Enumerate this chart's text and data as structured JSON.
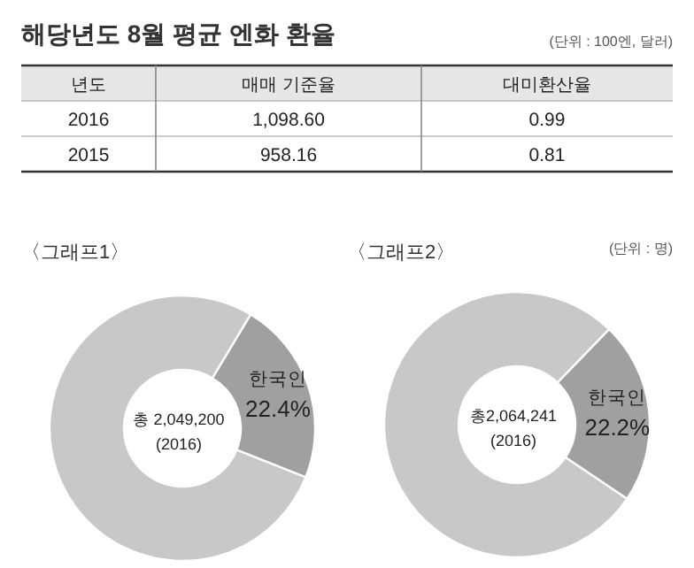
{
  "chart_data": [
    {
      "type": "other",
      "title": "해당년도 8월 평균 엔화 환율",
      "subtitle": "(단위 : 100엔, 달러)",
      "categories": [
        "년도",
        "매매 기준율",
        "대미환산율"
      ],
      "annotations": [
        "2016",
        "1,098.60",
        "0.99",
        "2015",
        "958.16",
        "0.81"
      ]
    },
    {
      "type": "donut",
      "title": "〈그래프1〉",
      "categories": [
        null,
        "한국인"
      ],
      "values": [
        77.6,
        22.4
      ],
      "colors": [
        "#c8c8c8",
        "#a0a0a2"
      ],
      "value_labels": [
        null,
        "22.4%"
      ],
      "annotations": [
        "총 2,049,200",
        "(2016)"
      ]
    },
    {
      "type": "donut",
      "title": "〈그래프2〉",
      "subtitle": "(단위 : 명)",
      "categories": [
        null,
        "한국인"
      ],
      "values": [
        77.8,
        22.2
      ],
      "colors": [
        "#c8c8c8",
        "#a0a0a2"
      ],
      "value_labels": [
        null,
        "22.2%"
      ],
      "annotations": [
        "총2,064,241",
        "(2016)"
      ]
    }
  ]
}
